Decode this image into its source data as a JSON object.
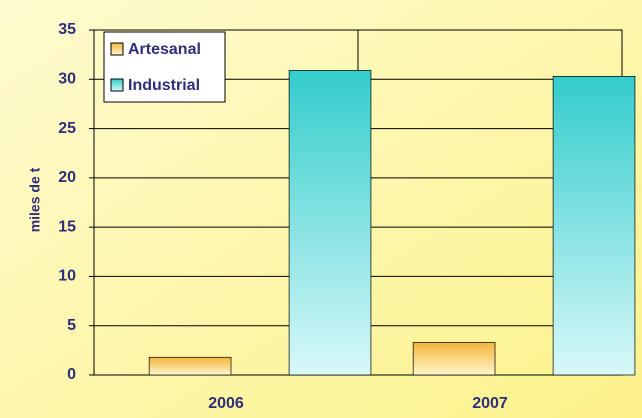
{
  "chart_data": {
    "type": "bar",
    "y_label": "miles de t",
    "categories": [
      "2006",
      "2007"
    ],
    "series": [
      {
        "name": "Artesanal",
        "color": "#f2b53a",
        "values": [
          1.8,
          3.3
        ]
      },
      {
        "name": "Industrial",
        "color": "#33cccc",
        "values": [
          30.9,
          30.3
        ]
      }
    ],
    "ylim": [
      0,
      35
    ],
    "yticks": [
      0,
      5,
      10,
      15,
      20,
      25,
      30,
      35
    ],
    "grid": true,
    "legend": "top-left"
  }
}
